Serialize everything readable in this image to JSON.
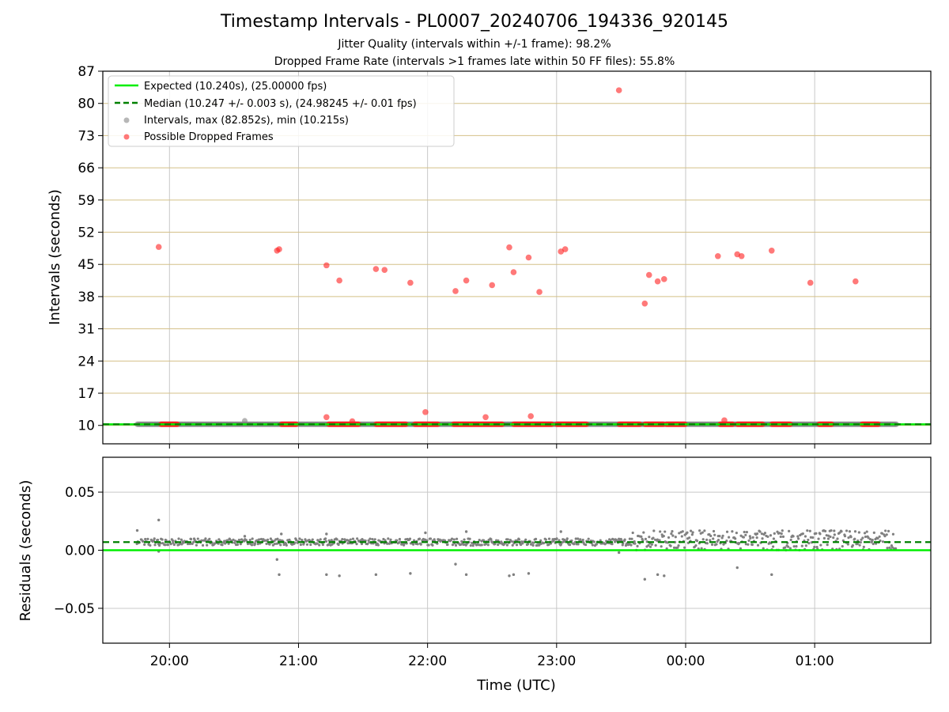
{
  "figure": {
    "title": "Timestamp Intervals - PL0007_20240706_194336_920145",
    "subtitle_1": "Jitter Quality (intervals within +/-1 frame): 98.2%",
    "subtitle_2": "Dropped Frame Rate (intervals >1 frames late within 50 FF files): 55.8%"
  },
  "colors": {
    "expected": "#00ee00",
    "median": "#008000",
    "intervals": "#808080",
    "dropped": "#ff2020",
    "hgrid_top": "#d4c088",
    "grid": "#c8c8c8"
  },
  "chart_data": [
    {
      "type": "scatter",
      "xlabel": "",
      "ylabel": "Intervals (seconds)",
      "xlim": [
        "19:29",
        "01:54"
      ],
      "ylim": [
        6,
        87
      ],
      "yticks": [
        "10",
        "17",
        "24",
        "31",
        "38",
        "45",
        "52",
        "59",
        "66",
        "73",
        "80",
        "87"
      ],
      "grid": "horizontal gold lines and vertical grey lines",
      "legend_position": "upper-left",
      "legend": [
        "Expected (10.240s), (25.00000 fps)",
        "Median (10.247 +/- 0.003 s), (24.98245 +/- 0.01 fps)",
        "Intervals, max (82.852s), min (10.215s)",
        "Possible Dropped Frames"
      ],
      "expected_line": 10.24,
      "median_line": 10.247,
      "intervals_time_range": [
        "19:45",
        "01:38"
      ],
      "intervals_typical": 10.247,
      "intervals_outliers": [
        {
          "x": "20:35",
          "y": 11.0
        }
      ],
      "dropped_frames_isolated": [
        {
          "x": "19:55",
          "y": 48.8
        },
        {
          "x": "20:50",
          "y": 48.0
        },
        {
          "x": "20:51",
          "y": 48.3
        },
        {
          "x": "21:13",
          "y": 44.8
        },
        {
          "x": "21:19",
          "y": 41.5
        },
        {
          "x": "21:36",
          "y": 44.0
        },
        {
          "x": "21:40",
          "y": 43.8
        },
        {
          "x": "21:52",
          "y": 41.0
        },
        {
          "x": "22:13",
          "y": 39.2
        },
        {
          "x": "22:18",
          "y": 41.5
        },
        {
          "x": "22:30",
          "y": 40.5
        },
        {
          "x": "22:38",
          "y": 48.7
        },
        {
          "x": "22:40",
          "y": 43.3
        },
        {
          "x": "22:47",
          "y": 46.5
        },
        {
          "x": "22:52",
          "y": 39.0
        },
        {
          "x": "23:02",
          "y": 47.8
        },
        {
          "x": "23:04",
          "y": 48.3
        },
        {
          "x": "23:29",
          "y": 82.852
        },
        {
          "x": "23:41",
          "y": 36.5
        },
        {
          "x": "23:43",
          "y": 42.7
        },
        {
          "x": "23:47",
          "y": 41.3
        },
        {
          "x": "23:50",
          "y": 41.8
        },
        {
          "x": "00:15",
          "y": 46.8
        },
        {
          "x": "00:24",
          "y": 47.2
        },
        {
          "x": "00:26",
          "y": 46.8
        },
        {
          "x": "00:40",
          "y": 48.0
        },
        {
          "x": "00:58",
          "y": 41.0
        },
        {
          "x": "01:19",
          "y": 41.3
        },
        {
          "x": "21:13",
          "y": 11.8
        },
        {
          "x": "21:25",
          "y": 10.9
        },
        {
          "x": "21:59",
          "y": 12.9
        },
        {
          "x": "22:27",
          "y": 11.8
        },
        {
          "x": "22:48",
          "y": 12.0
        },
        {
          "x": "00:18",
          "y": 11.1
        }
      ],
      "dropped_frames_clusters_at_y": 10.247,
      "dropped_frames_clusters": [
        [
          "19:56",
          "20:04"
        ],
        [
          "20:52",
          "20:59"
        ],
        [
          "21:14",
          "21:28"
        ],
        [
          "21:36",
          "21:50"
        ],
        [
          "21:54",
          "22:05"
        ],
        [
          "22:12",
          "22:35"
        ],
        [
          "22:40",
          "22:58"
        ],
        [
          "23:00",
          "23:14"
        ],
        [
          "23:29",
          "23:39"
        ],
        [
          "23:41",
          "23:50"
        ],
        [
          "23:51",
          "24:00"
        ],
        [
          "00:16",
          "00:22"
        ],
        [
          "00:24",
          "00:36"
        ],
        [
          "00:40",
          "00:49"
        ],
        [
          "01:02",
          "01:08"
        ],
        [
          "01:22",
          "01:30"
        ]
      ]
    },
    {
      "type": "scatter",
      "xlabel": "Time (UTC)",
      "ylabel": "Residuals (seconds)",
      "xlim": [
        "19:29",
        "01:54"
      ],
      "ylim": [
        -0.08,
        0.08
      ],
      "yticks": [
        "0.05",
        "0.00",
        "−0.05"
      ],
      "xticks": [
        "20:00",
        "21:00",
        "22:00",
        "23:00",
        "00:00",
        "01:00"
      ],
      "grid": "horizontal and vertical grey lines",
      "expected_line": 0.0,
      "median_line": 0.007,
      "residuals_band_before_2335": [
        0.004,
        0.01
      ],
      "residuals_band_after_2335": [
        0.0,
        0.017
      ],
      "residuals_outliers": [
        {
          "x": "19:45",
          "y": 0.017
        },
        {
          "x": "19:55",
          "y": 0.026
        },
        {
          "x": "19:55",
          "y": -0.001
        },
        {
          "x": "20:35",
          "y": 0.012
        },
        {
          "x": "20:50",
          "y": -0.008
        },
        {
          "x": "20:51",
          "y": -0.021
        },
        {
          "x": "20:52",
          "y": 0.014
        },
        {
          "x": "21:13",
          "y": -0.021
        },
        {
          "x": "21:19",
          "y": -0.022
        },
        {
          "x": "21:13",
          "y": 0.014
        },
        {
          "x": "21:36",
          "y": -0.021
        },
        {
          "x": "21:52",
          "y": -0.02
        },
        {
          "x": "21:59",
          "y": 0.015
        },
        {
          "x": "22:13",
          "y": -0.012
        },
        {
          "x": "22:18",
          "y": -0.021
        },
        {
          "x": "22:18",
          "y": 0.016
        },
        {
          "x": "22:38",
          "y": -0.022
        },
        {
          "x": "22:40",
          "y": -0.021
        },
        {
          "x": "22:47",
          "y": -0.02
        },
        {
          "x": "23:02",
          "y": 0.016
        },
        {
          "x": "23:29",
          "y": -0.002
        },
        {
          "x": "23:41",
          "y": -0.025
        },
        {
          "x": "23:47",
          "y": -0.021
        },
        {
          "x": "23:50",
          "y": -0.022
        },
        {
          "x": "00:24",
          "y": -0.015
        },
        {
          "x": "00:40",
          "y": -0.021
        }
      ]
    }
  ]
}
